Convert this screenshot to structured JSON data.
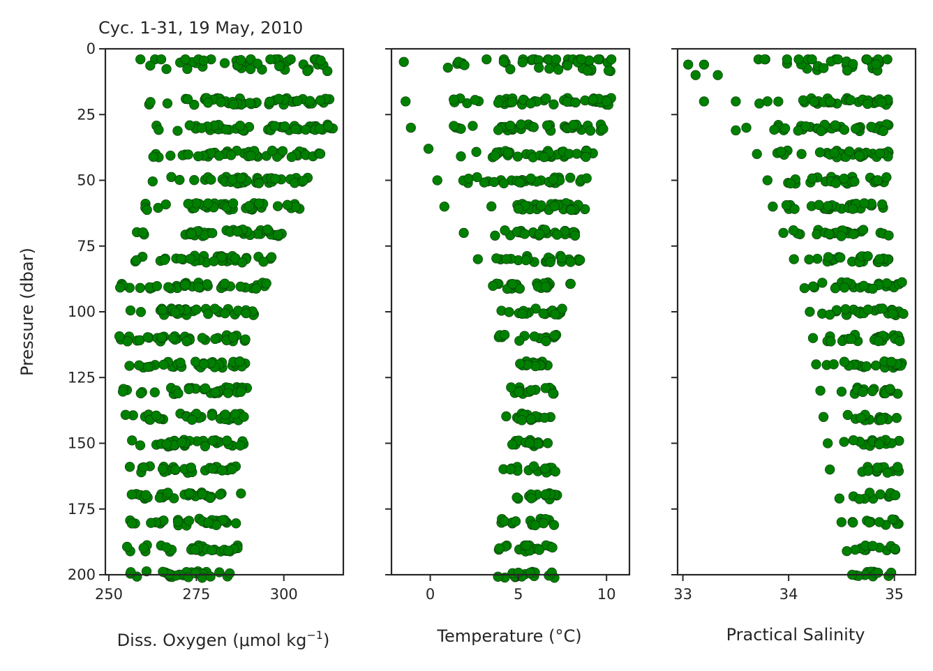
{
  "figure": {
    "title": "Cyc. 1-31, 19 May, 2010",
    "y_label": "Pressure (dbar)",
    "marker_color": "#008000"
  },
  "chart_data": [
    {
      "type": "scatter",
      "xlabel": "Diss. Oxygen (μmol kg−1)",
      "xlabel_main": "Diss. Oxygen (μmol kg",
      "xlabel_sup": "−1",
      "xlabel_tail": ")",
      "ylabel": "Pressure (dbar)",
      "xlim": [
        249,
        317
      ],
      "ylim": [
        200,
        0
      ],
      "xticks": [
        250,
        275,
        300
      ],
      "yticks": [
        0,
        25,
        50,
        75,
        100,
        125,
        150,
        175,
        200
      ],
      "profile": [
        [
          5,
          259,
          313
        ],
        [
          20,
          261,
          316
        ],
        [
          30,
          263,
          316
        ],
        [
          40,
          262,
          311
        ],
        [
          50,
          262,
          307
        ],
        [
          60,
          259,
          306
        ],
        [
          70,
          258,
          300
        ],
        [
          80,
          255,
          297
        ],
        [
          90,
          253,
          295
        ],
        [
          100,
          253,
          292
        ],
        [
          110,
          253,
          290
        ],
        [
          120,
          253,
          290
        ],
        [
          130,
          254,
          290
        ],
        [
          140,
          254,
          289
        ],
        [
          150,
          254,
          289
        ],
        [
          160,
          255,
          288
        ],
        [
          170,
          255,
          288
        ],
        [
          180,
          255,
          287
        ],
        [
          190,
          255,
          287
        ],
        [
          200,
          255,
          287
        ]
      ]
    },
    {
      "type": "scatter",
      "xlabel": "Temperature (°C)",
      "ylabel": "Pressure (dbar)",
      "xlim": [
        -2.2,
        11.3
      ],
      "ylim": [
        200,
        0
      ],
      "xticks": [
        0,
        5,
        10
      ],
      "yticks": [
        0,
        25,
        50,
        75,
        100,
        125,
        150,
        175,
        200
      ],
      "profile": [
        [
          5,
          1.0,
          10.7
        ],
        [
          20,
          1.2,
          10.7
        ],
        [
          30,
          1.2,
          10.0
        ],
        [
          40,
          1.5,
          9.5
        ],
        [
          50,
          1.8,
          9.0
        ],
        [
          60,
          3.2,
          9.0
        ],
        [
          70,
          3.2,
          8.8
        ],
        [
          80,
          3.5,
          8.5
        ],
        [
          90,
          3.0,
          8.3
        ],
        [
          100,
          3.8,
          7.6
        ],
        [
          110,
          3.8,
          7.2
        ],
        [
          120,
          3.8,
          7.0
        ],
        [
          130,
          3.8,
          7.0
        ],
        [
          140,
          3.8,
          7.0
        ],
        [
          150,
          3.8,
          7.0
        ],
        [
          160,
          3.8,
          7.1
        ],
        [
          170,
          3.8,
          7.2
        ],
        [
          180,
          3.8,
          7.2
        ],
        [
          190,
          3.8,
          7.2
        ],
        [
          200,
          3.8,
          7.2
        ]
      ],
      "outliers": [
        [
          5,
          -1.5
        ],
        [
          20,
          -1.4
        ],
        [
          30,
          -1.1
        ],
        [
          38,
          -0.1
        ],
        [
          50,
          0.4
        ],
        [
          60,
          0.8
        ],
        [
          70,
          1.9
        ],
        [
          80,
          2.7
        ]
      ]
    },
    {
      "type": "scatter",
      "xlabel": "Practical Salinity",
      "ylabel": "Pressure (dbar)",
      "xlim": [
        32.95,
        35.2
      ],
      "ylim": [
        200,
        0
      ],
      "xticks": [
        33,
        34,
        35
      ],
      "yticks": [
        0,
        25,
        50,
        75,
        100,
        125,
        150,
        175,
        200
      ],
      "profile": [
        [
          5,
          33.7,
          34.95
        ],
        [
          20,
          33.7,
          34.95
        ],
        [
          30,
          33.7,
          34.95
        ],
        [
          40,
          33.8,
          34.95
        ],
        [
          50,
          33.85,
          34.95
        ],
        [
          60,
          33.9,
          34.95
        ],
        [
          70,
          34.0,
          34.95
        ],
        [
          80,
          34.1,
          34.95
        ],
        [
          90,
          34.2,
          35.1
        ],
        [
          100,
          34.2,
          35.1
        ],
        [
          110,
          34.3,
          35.1
        ],
        [
          120,
          34.3,
          35.1
        ],
        [
          130,
          34.4,
          35.05
        ],
        [
          140,
          34.5,
          35.05
        ],
        [
          150,
          34.5,
          35.05
        ],
        [
          160,
          34.6,
          35.05
        ],
        [
          170,
          34.6,
          35.05
        ],
        [
          180,
          34.6,
          35.05
        ],
        [
          190,
          34.6,
          35.05
        ],
        [
          200,
          34.6,
          35.05
        ]
      ],
      "outliers": [
        [
          6,
          33.05
        ],
        [
          10,
          33.12
        ],
        [
          6,
          33.2
        ],
        [
          10,
          33.33
        ],
        [
          20,
          33.2
        ],
        [
          20,
          33.5
        ],
        [
          31,
          33.5
        ],
        [
          30,
          33.6
        ],
        [
          40,
          33.7
        ],
        [
          50,
          33.8
        ],
        [
          60,
          33.85
        ],
        [
          70,
          33.95
        ],
        [
          80,
          34.05
        ],
        [
          91,
          34.15
        ],
        [
          100,
          34.2
        ],
        [
          110,
          34.23
        ],
        [
          120,
          34.26
        ],
        [
          130,
          34.3
        ],
        [
          140,
          34.33
        ],
        [
          150,
          34.37
        ],
        [
          160,
          34.39
        ],
        [
          171,
          34.48
        ],
        [
          180,
          34.5
        ],
        [
          191,
          34.55
        ],
        [
          200,
          34.6
        ]
      ]
    }
  ]
}
